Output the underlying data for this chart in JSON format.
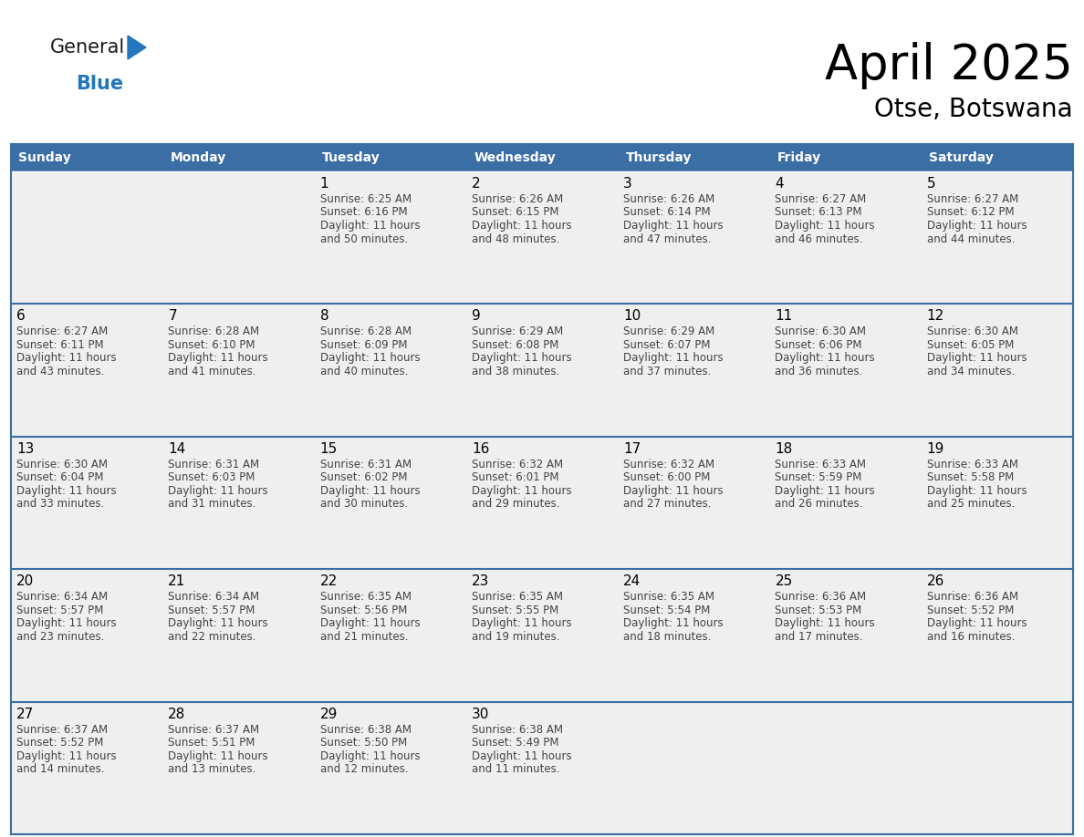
{
  "title": "April 2025",
  "subtitle": "Otse, Botswana",
  "header_color": "#3b6ea5",
  "header_text_color": "#ffffff",
  "cell_bg": "#efefef",
  "cell_bg_last": "#efefef",
  "border_color": "#3b6ea5",
  "separator_color": "#3b6ea5",
  "day_headers": [
    "Sunday",
    "Monday",
    "Tuesday",
    "Wednesday",
    "Thursday",
    "Friday",
    "Saturday"
  ],
  "title_color": "#000000",
  "subtitle_color": "#000000",
  "day_num_color": "#000000",
  "cell_text_color": "#444444",
  "weeks": [
    [
      {
        "day": "",
        "sunrise": "",
        "sunset": "",
        "daylight": ""
      },
      {
        "day": "",
        "sunrise": "",
        "sunset": "",
        "daylight": ""
      },
      {
        "day": "1",
        "sunrise": "6:25 AM",
        "sunset": "6:16 PM",
        "daylight": "11 hours and 50 minutes."
      },
      {
        "day": "2",
        "sunrise": "6:26 AM",
        "sunset": "6:15 PM",
        "daylight": "11 hours and 48 minutes."
      },
      {
        "day": "3",
        "sunrise": "6:26 AM",
        "sunset": "6:14 PM",
        "daylight": "11 hours and 47 minutes."
      },
      {
        "day": "4",
        "sunrise": "6:27 AM",
        "sunset": "6:13 PM",
        "daylight": "11 hours and 46 minutes."
      },
      {
        "day": "5",
        "sunrise": "6:27 AM",
        "sunset": "6:12 PM",
        "daylight": "11 hours and 44 minutes."
      }
    ],
    [
      {
        "day": "6",
        "sunrise": "6:27 AM",
        "sunset": "6:11 PM",
        "daylight": "11 hours and 43 minutes."
      },
      {
        "day": "7",
        "sunrise": "6:28 AM",
        "sunset": "6:10 PM",
        "daylight": "11 hours and 41 minutes."
      },
      {
        "day": "8",
        "sunrise": "6:28 AM",
        "sunset": "6:09 PM",
        "daylight": "11 hours and 40 minutes."
      },
      {
        "day": "9",
        "sunrise": "6:29 AM",
        "sunset": "6:08 PM",
        "daylight": "11 hours and 38 minutes."
      },
      {
        "day": "10",
        "sunrise": "6:29 AM",
        "sunset": "6:07 PM",
        "daylight": "11 hours and 37 minutes."
      },
      {
        "day": "11",
        "sunrise": "6:30 AM",
        "sunset": "6:06 PM",
        "daylight": "11 hours and 36 minutes."
      },
      {
        "day": "12",
        "sunrise": "6:30 AM",
        "sunset": "6:05 PM",
        "daylight": "11 hours and 34 minutes."
      }
    ],
    [
      {
        "day": "13",
        "sunrise": "6:30 AM",
        "sunset": "6:04 PM",
        "daylight": "11 hours and 33 minutes."
      },
      {
        "day": "14",
        "sunrise": "6:31 AM",
        "sunset": "6:03 PM",
        "daylight": "11 hours and 31 minutes."
      },
      {
        "day": "15",
        "sunrise": "6:31 AM",
        "sunset": "6:02 PM",
        "daylight": "11 hours and 30 minutes."
      },
      {
        "day": "16",
        "sunrise": "6:32 AM",
        "sunset": "6:01 PM",
        "daylight": "11 hours and 29 minutes."
      },
      {
        "day": "17",
        "sunrise": "6:32 AM",
        "sunset": "6:00 PM",
        "daylight": "11 hours and 27 minutes."
      },
      {
        "day": "18",
        "sunrise": "6:33 AM",
        "sunset": "5:59 PM",
        "daylight": "11 hours and 26 minutes."
      },
      {
        "day": "19",
        "sunrise": "6:33 AM",
        "sunset": "5:58 PM",
        "daylight": "11 hours and 25 minutes."
      }
    ],
    [
      {
        "day": "20",
        "sunrise": "6:34 AM",
        "sunset": "5:57 PM",
        "daylight": "11 hours and 23 minutes."
      },
      {
        "day": "21",
        "sunrise": "6:34 AM",
        "sunset": "5:57 PM",
        "daylight": "11 hours and 22 minutes."
      },
      {
        "day": "22",
        "sunrise": "6:35 AM",
        "sunset": "5:56 PM",
        "daylight": "11 hours and 21 minutes."
      },
      {
        "day": "23",
        "sunrise": "6:35 AM",
        "sunset": "5:55 PM",
        "daylight": "11 hours and 19 minutes."
      },
      {
        "day": "24",
        "sunrise": "6:35 AM",
        "sunset": "5:54 PM",
        "daylight": "11 hours and 18 minutes."
      },
      {
        "day": "25",
        "sunrise": "6:36 AM",
        "sunset": "5:53 PM",
        "daylight": "11 hours and 17 minutes."
      },
      {
        "day": "26",
        "sunrise": "6:36 AM",
        "sunset": "5:52 PM",
        "daylight": "11 hours and 16 minutes."
      }
    ],
    [
      {
        "day": "27",
        "sunrise": "6:37 AM",
        "sunset": "5:52 PM",
        "daylight": "11 hours and 14 minutes."
      },
      {
        "day": "28",
        "sunrise": "6:37 AM",
        "sunset": "5:51 PM",
        "daylight": "11 hours and 13 minutes."
      },
      {
        "day": "29",
        "sunrise": "6:38 AM",
        "sunset": "5:50 PM",
        "daylight": "11 hours and 12 minutes."
      },
      {
        "day": "30",
        "sunrise": "6:38 AM",
        "sunset": "5:49 PM",
        "daylight": "11 hours and 11 minutes."
      },
      {
        "day": "",
        "sunrise": "",
        "sunset": "",
        "daylight": ""
      },
      {
        "day": "",
        "sunrise": "",
        "sunset": "",
        "daylight": ""
      },
      {
        "day": "",
        "sunrise": "",
        "sunset": "",
        "daylight": ""
      }
    ]
  ],
  "logo_text_general": "General",
  "logo_text_blue": "Blue",
  "logo_color_general": "#1a1a1a",
  "logo_color_blue": "#2176bc",
  "logo_triangle_color": "#2176bc"
}
